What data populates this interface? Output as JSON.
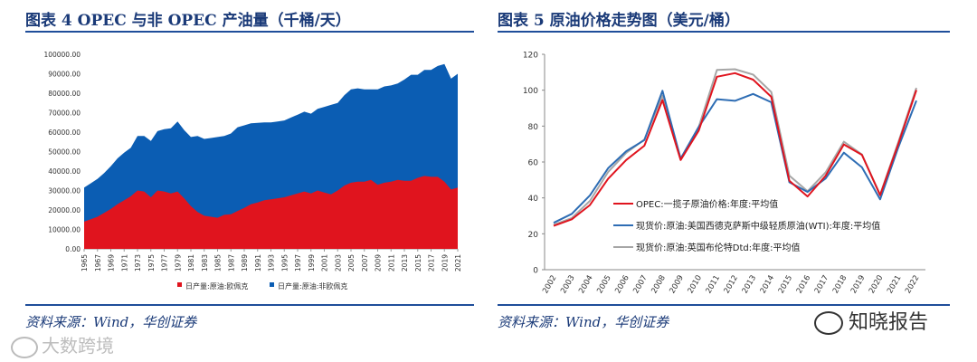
{
  "left_panel": {
    "title": "图表 4   OPEC 与非 OPEC 产油量（千桶/天）",
    "source": "资料来源：Wind，华创证券"
  },
  "right_panel": {
    "title": "图表 5   原油价格走势图（美元/桶）",
    "source": "资料来源：Wind，华创证券"
  },
  "watermarks": {
    "left": "大数跨境",
    "right": "知晓报告"
  },
  "colors": {
    "title_blue": "#1a3a78",
    "opec_red": "#e0141e",
    "nonopec_blue": "#0b5db3",
    "wti_blue": "#2e6db4",
    "brent_gray": "#a6a6a6"
  },
  "chart_data": [
    {
      "type": "area",
      "stacked": true,
      "x": [
        1965,
        1966,
        1967,
        1968,
        1969,
        1970,
        1971,
        1972,
        1973,
        1974,
        1975,
        1976,
        1977,
        1978,
        1979,
        1980,
        1981,
        1982,
        1983,
        1984,
        1985,
        1986,
        1987,
        1988,
        1989,
        1990,
        1991,
        1992,
        1993,
        1994,
        1995,
        1996,
        1997,
        1998,
        1999,
        2000,
        2001,
        2002,
        2003,
        2004,
        2005,
        2006,
        2007,
        2008,
        2009,
        2010,
        2011,
        2012,
        2013,
        2014,
        2015,
        2016,
        2017,
        2018,
        2019,
        2020,
        2021
      ],
      "x_tick_labels": [
        "1965",
        "1967",
        "1969",
        "1971",
        "1973",
        "1975",
        "1977",
        "1979",
        "1981",
        "1983",
        "1985",
        "1987",
        "1989",
        "1991",
        "1993",
        "1995",
        "1997",
        "1999",
        "2001",
        "2003",
        "2005",
        "2007",
        "2009",
        "2011",
        "2013",
        "2015",
        "2017",
        "2019",
        "2021"
      ],
      "y_tick_labels": [
        "0.00",
        "10000.00",
        "20000.00",
        "30000.00",
        "40000.00",
        "50000.00",
        "60000.00",
        "70000.00",
        "80000.00",
        "90000.00",
        "100000.00"
      ],
      "ylim": [
        0,
        100000
      ],
      "series": [
        {
          "name": "日产量:原油:欧佩克",
          "values": [
            14000,
            15200,
            16500,
            18500,
            20500,
            23000,
            25000,
            27000,
            30000,
            29500,
            26500,
            30000,
            29500,
            28500,
            29500,
            26000,
            22000,
            19000,
            17000,
            16500,
            16000,
            17500,
            17800,
            19500,
            21000,
            23000,
            23800,
            25000,
            25500,
            26000,
            26500,
            27500,
            28500,
            29500,
            28500,
            30000,
            29000,
            28000,
            30000,
            32500,
            34000,
            34500,
            34500,
            35500,
            33000,
            34000,
            34500,
            35500,
            35000,
            35000,
            36500,
            37500,
            37000,
            37000,
            34500,
            30500,
            31500
          ]
        },
        {
          "name": "日产量:原油:非欧佩克",
          "values": [
            17500,
            18500,
            19500,
            20500,
            22000,
            23500,
            24500,
            25000,
            28000,
            28500,
            29000,
            30500,
            32000,
            33500,
            36000,
            35000,
            35500,
            39000,
            39500,
            40500,
            41500,
            40500,
            41500,
            43000,
            42500,
            41500,
            41000,
            40000,
            39500,
            39500,
            39500,
            40000,
            40500,
            41000,
            41000,
            42000,
            44000,
            46000,
            45000,
            46500,
            48000,
            48000,
            47500,
            46500,
            49000,
            49500,
            49500,
            49500,
            52000,
            54500,
            53000,
            54500,
            55000,
            57000,
            60500,
            57000,
            58500
          ]
        }
      ],
      "legend": [
        "日产量:原油:欧佩克",
        "日产量:原油:非欧佩克"
      ],
      "legend_position": "bottom"
    },
    {
      "type": "line",
      "x": [
        "2002",
        "2003",
        "2004",
        "2005",
        "2006",
        "2007",
        "2008",
        "2009",
        "2010",
        "2011",
        "2012",
        "2013",
        "2014",
        "2015",
        "2016",
        "2017",
        "2018",
        "2019",
        "2020",
        "2021",
        "2022"
      ],
      "ylim": [
        0,
        120
      ],
      "y_ticks": [
        0,
        20,
        40,
        60,
        80,
        100,
        120
      ],
      "series": [
        {
          "name": "OPEC:一揽子原油价格:年度:平均值",
          "values": [
            24.4,
            28.1,
            36.0,
            50.6,
            61.1,
            69.1,
            94.5,
            61.1,
            77.5,
            107.5,
            109.5,
            105.9,
            96.3,
            49.5,
            40.8,
            52.4,
            69.8,
            64.0,
            41.5,
            69.9,
            100.1
          ]
        },
        {
          "name": "现货价:原油:美国西德克萨斯中级轻质原油(WTI):年度:平均值",
          "values": [
            26.1,
            31.1,
            41.4,
            56.5,
            66.0,
            72.2,
            99.7,
            61.9,
            79.5,
            95.0,
            94.1,
            97.9,
            93.3,
            48.7,
            43.3,
            50.8,
            65.2,
            57.0,
            39.2,
            68.0,
            94.2
          ]
        },
        {
          "name": "现货价:原油:英国布伦特Dtd:年度:平均值",
          "values": [
            25.0,
            28.8,
            38.3,
            54.4,
            65.1,
            72.5,
            97.0,
            61.7,
            79.5,
            111.3,
            111.7,
            108.7,
            99.0,
            52.4,
            43.7,
            54.2,
            71.3,
            64.2,
            41.8,
            70.9,
            101.3
          ]
        }
      ],
      "legend_position": "center-left"
    }
  ]
}
